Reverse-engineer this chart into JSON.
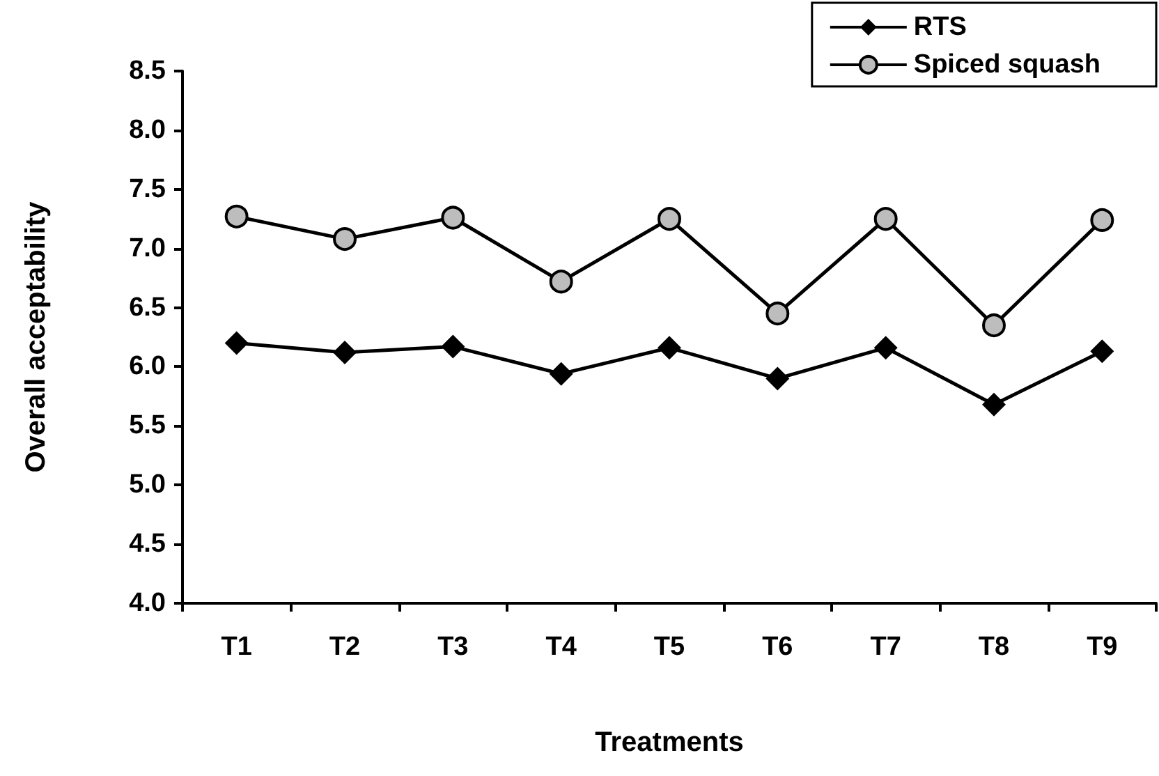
{
  "chart_data": {
    "type": "line",
    "xlabel": "Treatments",
    "ylabel": "Overall acceptability",
    "categories": [
      "T1",
      "T2",
      "T3",
      "T4",
      "T5",
      "T6",
      "T7",
      "T8",
      "T9"
    ],
    "series": [
      {
        "name": "RTS",
        "color": "#000000",
        "marker": "diamond",
        "values": [
          6.2,
          6.12,
          6.17,
          5.94,
          6.16,
          5.9,
          6.16,
          5.68,
          6.13
        ]
      },
      {
        "name": "Spiced squash",
        "color": "#000000",
        "marker": "circle",
        "values": [
          7.27,
          7.08,
          7.26,
          6.72,
          7.25,
          6.45,
          7.25,
          6.35,
          7.24
        ]
      }
    ],
    "ylim": [
      4.0,
      8.5
    ],
    "yticks": [
      {
        "value": 4,
        "label": "4.0"
      },
      4.5,
      {
        "value": 5,
        "label": "5.0"
      },
      5.5,
      {
        "value": 6,
        "label": "6.0"
      },
      6.5,
      {
        "value": 7,
        "label": "7.0"
      },
      7.5,
      {
        "value": 8,
        "label": "8.0"
      },
      8.5
    ],
    "grid": false,
    "legend": "top right",
    "line_style": "solid"
  }
}
